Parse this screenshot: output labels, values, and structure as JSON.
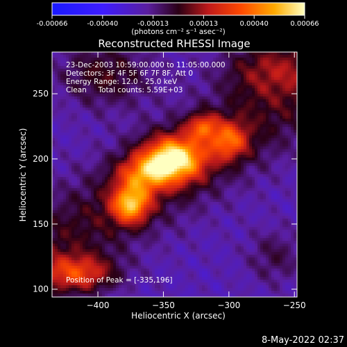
{
  "chart_data": {
    "type": "heatmap",
    "title": "Reconstructed RHESSI Image",
    "xlabel": "Heliocentric X (arcsec)",
    "ylabel": "Heliocentric Y (arcsec)",
    "xlim": [
      -435,
      -248
    ],
    "ylim": [
      94,
      282
    ],
    "x_ticks": [
      -400,
      -350,
      -300,
      -250
    ],
    "y_ticks": [
      100,
      150,
      200,
      250
    ],
    "colorbar": {
      "ticks": [
        "-0.00066",
        "-0.00040",
        "-0.00013",
        "0.00013",
        "0.00040",
        "0.00066"
      ],
      "range": [
        -0.00066,
        0.00066
      ],
      "units_label": "(photons cm⁻² s⁻¹ asec⁻²)"
    },
    "peak": {
      "x": -335,
      "y": 196
    },
    "sources": [
      {
        "x": -342,
        "y": 200,
        "amp": 1.0,
        "sx": 16,
        "sy": 12
      },
      {
        "x": -365,
        "y": 188,
        "amp": 0.55,
        "sx": 14,
        "sy": 10
      },
      {
        "x": -375,
        "y": 165,
        "amp": 0.8,
        "sx": 10,
        "sy": 10
      },
      {
        "x": -300,
        "y": 214,
        "amp": 0.55,
        "sx": 10,
        "sy": 10
      },
      {
        "x": -320,
        "y": 225,
        "amp": 0.5,
        "sx": 8,
        "sy": 7
      },
      {
        "x": -415,
        "y": 112,
        "amp": 0.55,
        "sx": 20,
        "sy": 10
      },
      {
        "x": -395,
        "y": 265,
        "amp": 0.3,
        "sx": 25,
        "sy": 18
      },
      {
        "x": -270,
        "y": 270,
        "amp": 0.3,
        "sx": 25,
        "sy": 15
      },
      {
        "x": -265,
        "y": 125,
        "amp": 0.2,
        "sx": 15,
        "sy": 15
      }
    ]
  },
  "annotations": {
    "time_range": "23-Dec-2003 10:59:00.000 to 11:05:00.000",
    "detectors": "Detectors: 3F 4F 5F 6F 7F 8F, Att 0",
    "energy_range": "Energy Range: 12.0 - 25.0 keV",
    "clean_counts": "Clean     Total counts: 5.59E+03",
    "peak_position": "Position of Peak = [-335,196]"
  },
  "timestamp": "8-May-2022 02:37"
}
